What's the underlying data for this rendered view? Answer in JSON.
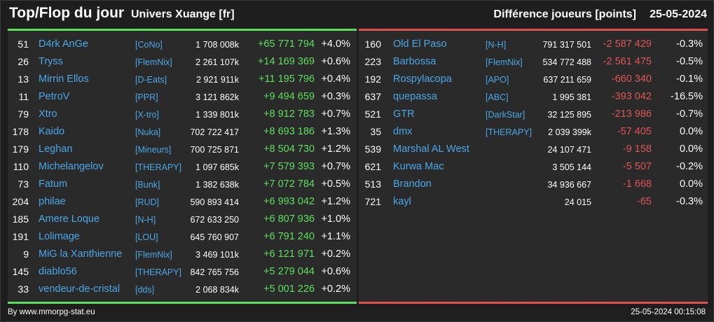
{
  "header": {
    "title": "Top/Flop du jour",
    "subtitle": "Univers Xuange [fr]",
    "metric": "Différence joueurs [points]",
    "date": "25-05-2024"
  },
  "colors": {
    "top_accent": "#5ce05c",
    "flop_accent": "#e05050",
    "name_color": "#4aa8e8"
  },
  "top": [
    {
      "rank": "51",
      "name": "D4rk AnGe",
      "guild": "[CoNo]",
      "points": "1 708 008k",
      "diff": "+65 771 794",
      "pct": "+4.0%"
    },
    {
      "rank": "26",
      "name": "Tryss",
      "guild": "[FlemNix]",
      "points": "2 261 107k",
      "diff": "+14 169 369",
      "pct": "+0.6%"
    },
    {
      "rank": "13",
      "name": "Mirrin Ellos",
      "guild": "[D-Eats]",
      "points": "2 921 911k",
      "diff": "+11 195 796",
      "pct": "+0.4%"
    },
    {
      "rank": "11",
      "name": "PetroV",
      "guild": "[PPR]",
      "points": "3 121 862k",
      "diff": "+9 494 659",
      "pct": "+0.3%"
    },
    {
      "rank": "79",
      "name": "Xtro",
      "guild": "[X-tro]",
      "points": "1 339 801k",
      "diff": "+8 912 783",
      "pct": "+0.7%"
    },
    {
      "rank": "178",
      "name": "Kaido",
      "guild": "[Nuka]",
      "points": "702 722 417",
      "diff": "+8 693 186",
      "pct": "+1.3%"
    },
    {
      "rank": "179",
      "name": "Leghan",
      "guild": "[Mineurs]",
      "points": "700 725 871",
      "diff": "+8 504 730",
      "pct": "+1.2%"
    },
    {
      "rank": "110",
      "name": "Michelangelov",
      "guild": "[THERAPY]",
      "points": "1 097 685k",
      "diff": "+7 579 393",
      "pct": "+0.7%"
    },
    {
      "rank": "73",
      "name": "Fatum",
      "guild": "[Bunk]",
      "points": "1 382 638k",
      "diff": "+7 072 784",
      "pct": "+0.5%"
    },
    {
      "rank": "204",
      "name": "philae",
      "guild": "[RUD]",
      "points": "590 893 414",
      "diff": "+6 993 042",
      "pct": "+1.2%"
    },
    {
      "rank": "185",
      "name": "Amere Loque",
      "guild": "[N-H]",
      "points": "672 633 250",
      "diff": "+6 807 936",
      "pct": "+1.0%"
    },
    {
      "rank": "191",
      "name": "Lolimage",
      "guild": "[LOU]",
      "points": "645 760 907",
      "diff": "+6 791 240",
      "pct": "+1.1%"
    },
    {
      "rank": "9",
      "name": "MiG la Xanthienne",
      "guild": "[FlemNix]",
      "points": "3 469 101k",
      "diff": "+6 121 971",
      "pct": "+0.2%"
    },
    {
      "rank": "145",
      "name": "diablo56",
      "guild": "[THERAPY]",
      "points": "842 765 756",
      "diff": "+5 279 044",
      "pct": "+0.6%"
    },
    {
      "rank": "33",
      "name": "vendeur-de-cristal",
      "guild": "[dds]",
      "points": "2 068 834k",
      "diff": "+5 001 226",
      "pct": "+0.2%"
    }
  ],
  "flop": [
    {
      "rank": "160",
      "name": "Old El Paso",
      "guild": "[N-H]",
      "points": "791 317 501",
      "diff": "-2 587 429",
      "pct": "-0.3%"
    },
    {
      "rank": "223",
      "name": "Barbossa",
      "guild": "[FlemNix]",
      "points": "534 772 488",
      "diff": "-2 561 475",
      "pct": "-0.5%"
    },
    {
      "rank": "192",
      "name": "Rospylacopa",
      "guild": "[APO]",
      "points": "637 211 659",
      "diff": "-660 340",
      "pct": "-0.1%"
    },
    {
      "rank": "637",
      "name": "quepassa",
      "guild": "[ABC]",
      "points": "1 995 381",
      "diff": "-393 042",
      "pct": "-16.5%"
    },
    {
      "rank": "521",
      "name": "GTR",
      "guild": "[DarkStar]",
      "points": "32 125 895",
      "diff": "-213 986",
      "pct": "-0.7%"
    },
    {
      "rank": "35",
      "name": "dmx",
      "guild": "[THERAPY]",
      "points": "2 039 399k",
      "diff": "-57 405",
      "pct": "0.0%"
    },
    {
      "rank": "539",
      "name": "Marshal AL West",
      "guild": "",
      "points": "24 107 471",
      "diff": "-9 158",
      "pct": "0.0%"
    },
    {
      "rank": "621",
      "name": "Kurwa Mac",
      "guild": "",
      "points": "3 505 144",
      "diff": "-5 507",
      "pct": "-0.2%"
    },
    {
      "rank": "513",
      "name": "Brandon",
      "guild": "",
      "points": "34 936 667",
      "diff": "-1 668",
      "pct": "0.0%"
    },
    {
      "rank": "721",
      "name": "kayl",
      "guild": "",
      "points": "24 015",
      "diff": "-65",
      "pct": "-0.3%"
    }
  ],
  "footer": {
    "source": "By www.mmorpg-stat.eu",
    "timestamp": "25-05-2024 00:15:08"
  }
}
